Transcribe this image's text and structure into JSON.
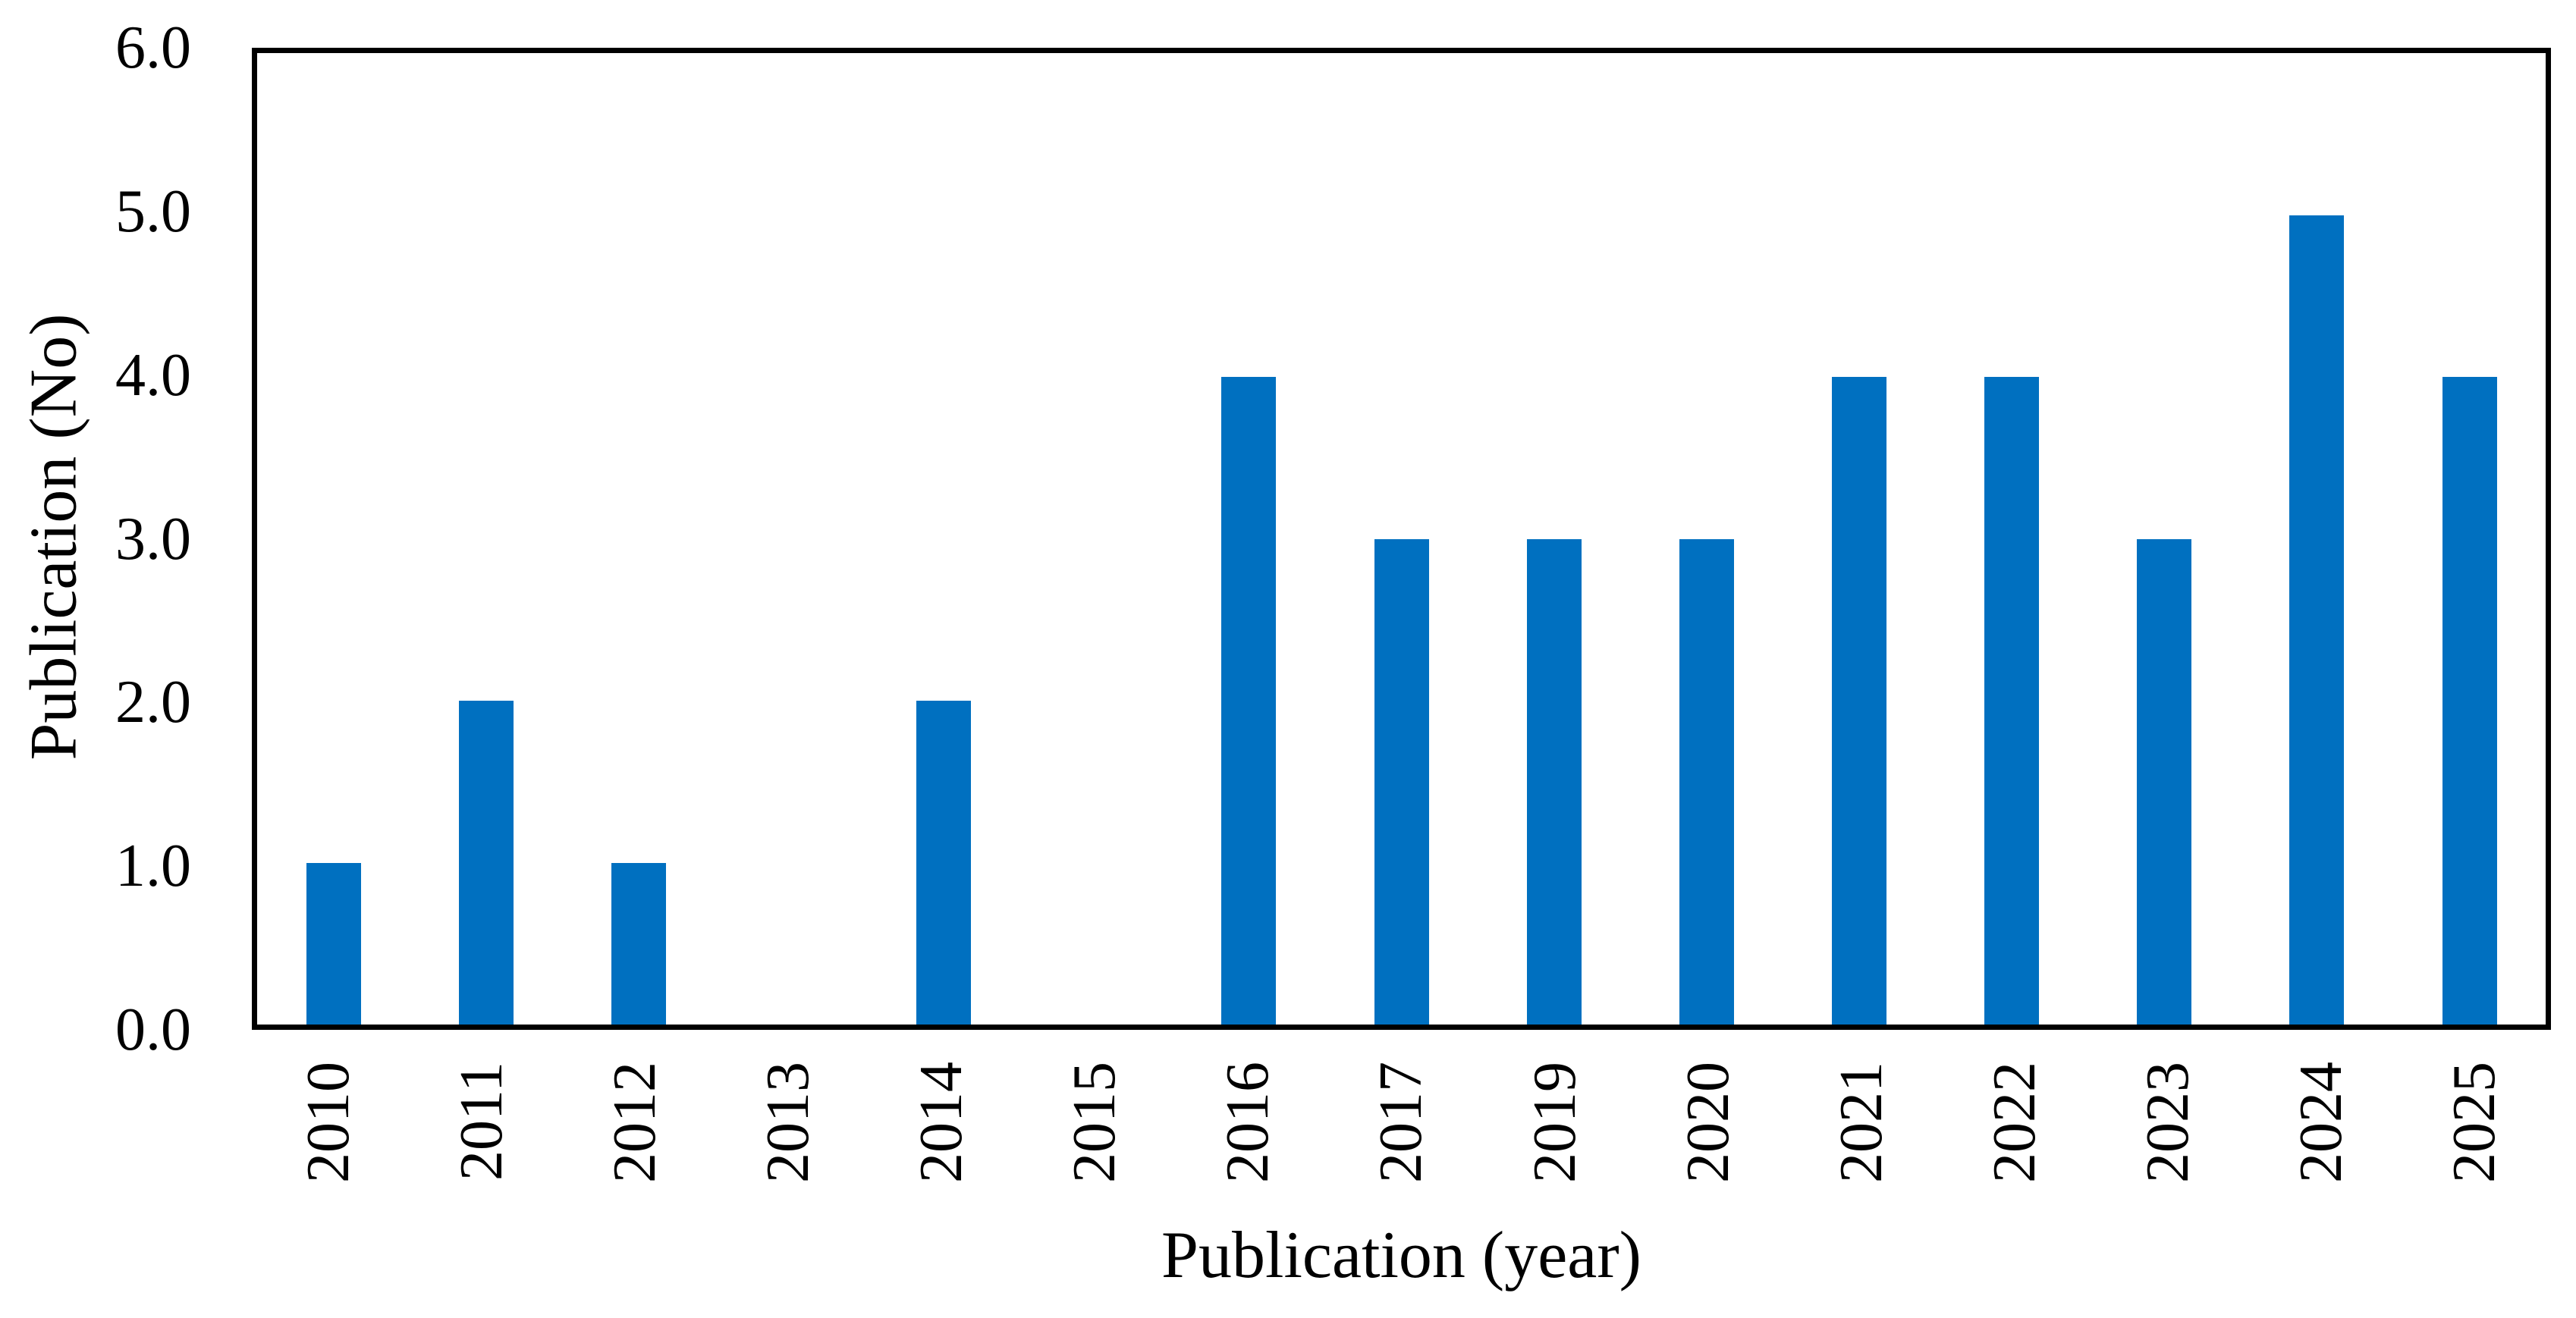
{
  "chart_data": {
    "type": "bar",
    "title": "",
    "xlabel": "Publication (year)",
    "ylabel": "Publication (No)",
    "categories": [
      "2010",
      "2011",
      "2012",
      "2013",
      "2014",
      "2015",
      "2016",
      "2017",
      "2019",
      "2020",
      "2021",
      "2022",
      "2023",
      "2024",
      "2025"
    ],
    "values": [
      1,
      2,
      1,
      0,
      2,
      0,
      4,
      3,
      3,
      3,
      4,
      4,
      3,
      5,
      4
    ],
    "ylim": [
      0,
      6
    ],
    "ytick_labels": [
      "0.0",
      "1.0",
      "2.0",
      "3.0",
      "4.0",
      "5.0",
      "6.0"
    ],
    "grid": false,
    "legend": "none",
    "bar_color": "#0070C0",
    "axis_color": "#000000",
    "plot_background": "#FFFFFF"
  }
}
